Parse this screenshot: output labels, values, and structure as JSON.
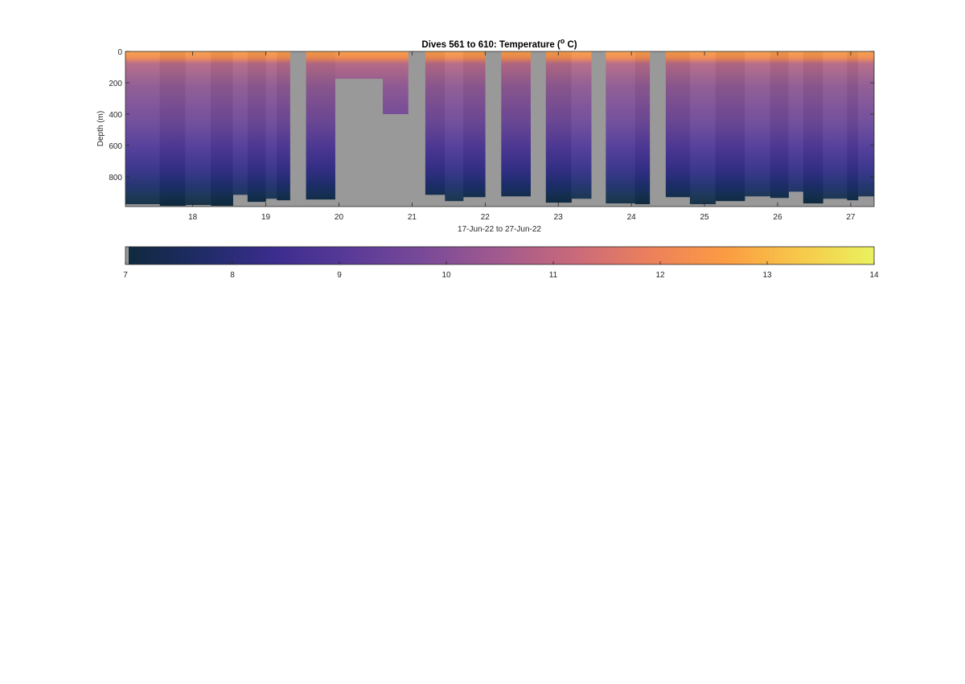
{
  "chart_data": {
    "type": "heatmap",
    "title_main": "Dives 561 to 610: Temperature (",
    "title_unit_sup": "o",
    "title_unit_rest": " C)",
    "xlabel": "17-Jun-22 to 27-Jun-22",
    "ylabel": "Depth (m)",
    "xlim": [
      17.08,
      27.32
    ],
    "ylim": [
      0,
      990
    ],
    "y_reversed": true,
    "x_ticks": [
      18,
      19,
      20,
      21,
      22,
      23,
      24,
      25,
      26,
      27
    ],
    "x_tick_labels": [
      "18",
      "19",
      "20",
      "21",
      "22",
      "23",
      "24",
      "25",
      "26",
      "27"
    ],
    "y_ticks": [
      0,
      200,
      400,
      600,
      800
    ],
    "y_tick_labels": [
      "0",
      "200",
      "400",
      "600",
      "800"
    ],
    "colorbar": {
      "orientation": "horizontal",
      "range": [
        7,
        14
      ],
      "ticks": [
        7,
        8,
        9,
        10,
        11,
        12,
        13,
        14
      ],
      "tick_labels": [
        "7",
        "8",
        "9",
        "10",
        "11",
        "12",
        "13",
        "14"
      ],
      "colormap": [
        "#0f2a3c",
        "#1f2b66",
        "#3b2d8e",
        "#5a3a98",
        "#7a4a98",
        "#a25a8e",
        "#c96a7a",
        "#ec805c",
        "#fb9b42",
        "#f7c84a",
        "#eaf25e"
      ]
    },
    "no_data_color": "#999999",
    "profiles": [
      {
        "x0": 17.08,
        "x1": 17.55,
        "max_depth": 975
      },
      {
        "x0": 17.55,
        "x1": 17.9,
        "max_depth": 985
      },
      {
        "x0": 17.9,
        "x1": 18.25,
        "max_depth": 980
      },
      {
        "x0": 18.25,
        "x1": 18.55,
        "max_depth": 985
      },
      {
        "x0": 18.55,
        "x1": 18.75,
        "max_depth": 915
      },
      {
        "x0": 18.75,
        "x1": 19.0,
        "max_depth": 960
      },
      {
        "x0": 19.0,
        "x1": 19.15,
        "max_depth": 940
      },
      {
        "x0": 19.15,
        "x1": 19.33,
        "max_depth": 950
      },
      {
        "x0": 19.33,
        "x1": 19.55,
        "max_depth": 0
      },
      {
        "x0": 19.55,
        "x1": 19.95,
        "max_depth": 945
      },
      {
        "x0": 19.95,
        "x1": 20.6,
        "max_depth": 0
      },
      {
        "x0": 20.6,
        "x1": 20.95,
        "max_depth": 0
      },
      {
        "x0": 20.95,
        "x1": 21.18,
        "max_depth": 0
      },
      {
        "x0": 21.18,
        "x1": 21.45,
        "max_depth": 915
      },
      {
        "x0": 21.45,
        "x1": 21.7,
        "max_depth": 955
      },
      {
        "x0": 21.7,
        "x1": 22.0,
        "max_depth": 930
      },
      {
        "x0": 22.0,
        "x1": 22.22,
        "max_depth": 0
      },
      {
        "x0": 22.22,
        "x1": 22.62,
        "max_depth": 925
      },
      {
        "x0": 22.62,
        "x1": 22.83,
        "max_depth": 0
      },
      {
        "x0": 22.83,
        "x1": 23.18,
        "max_depth": 965
      },
      {
        "x0": 23.18,
        "x1": 23.45,
        "max_depth": 940
      },
      {
        "x0": 23.45,
        "x1": 23.65,
        "max_depth": 0
      },
      {
        "x0": 23.65,
        "x1": 24.05,
        "max_depth": 970
      },
      {
        "x0": 24.05,
        "x1": 24.25,
        "max_depth": 975
      },
      {
        "x0": 24.25,
        "x1": 24.47,
        "max_depth": 0
      },
      {
        "x0": 24.47,
        "x1": 24.8,
        "max_depth": 930
      },
      {
        "x0": 24.8,
        "x1": 25.15,
        "max_depth": 975
      },
      {
        "x0": 25.15,
        "x1": 25.55,
        "max_depth": 955
      },
      {
        "x0": 25.55,
        "x1": 25.9,
        "max_depth": 925
      },
      {
        "x0": 25.9,
        "x1": 26.15,
        "max_depth": 935
      },
      {
        "x0": 26.15,
        "x1": 26.35,
        "max_depth": 895
      },
      {
        "x0": 26.35,
        "x1": 26.62,
        "max_depth": 970
      },
      {
        "x0": 26.62,
        "x1": 26.95,
        "max_depth": 940
      },
      {
        "x0": 26.95,
        "x1": 27.1,
        "max_depth": 950
      },
      {
        "x0": 27.1,
        "x1": 27.32,
        "max_depth": 925
      }
    ],
    "partial_no_data": [
      {
        "x0": 19.95,
        "x1": 20.6,
        "from_depth": 175
      },
      {
        "x0": 20.6,
        "x1": 20.95,
        "from_depth": 400
      },
      {
        "x0": 20.95,
        "x1": 21.18,
        "from_depth": 0
      }
    ]
  }
}
